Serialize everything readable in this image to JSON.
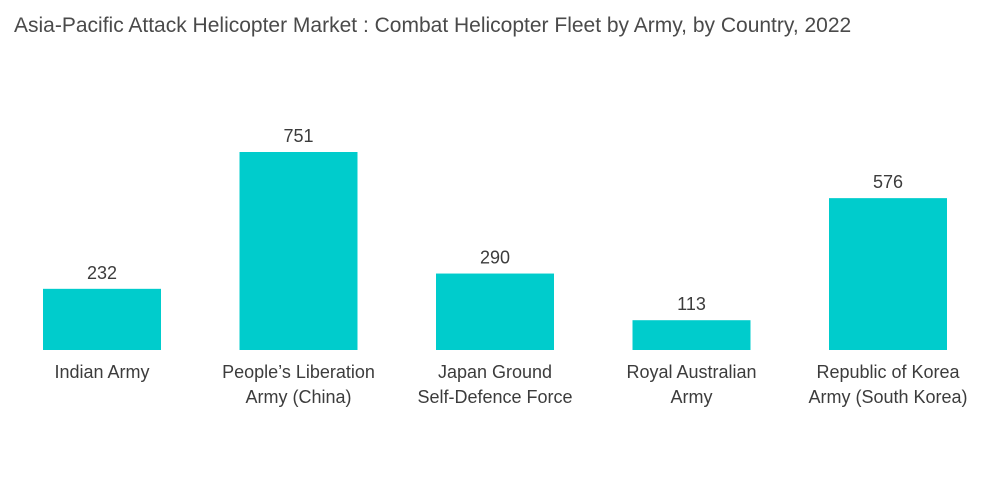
{
  "chart_data": {
    "type": "bar",
    "title": "Asia-Pacific Attack Helicopter Market : Combat Helicopter Fleet by Army, by Country, 2022",
    "xlabel": "",
    "ylabel": "",
    "categories": [
      [
        "Indian Army"
      ],
      [
        "People’s Liberation",
        "Army (China)"
      ],
      [
        "Japan Ground",
        "Self-Defence Force"
      ],
      [
        "Royal Australian",
        "Army"
      ],
      [
        "Republic of Korea",
        "Army (South Korea)"
      ]
    ],
    "values": [
      232,
      751,
      290,
      113,
      576
    ],
    "value_labels": [
      "232",
      "751",
      "290",
      "113",
      "576"
    ],
    "ylim": [
      0,
      751
    ],
    "grid": false,
    "legend": "none",
    "bar_color": "#00cccc"
  }
}
